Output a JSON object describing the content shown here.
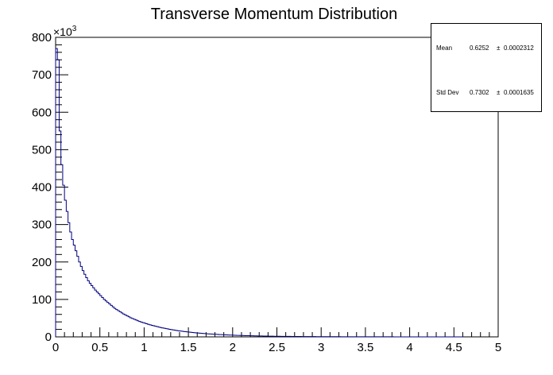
{
  "chart_data": {
    "type": "histogram",
    "title": "Transverse Momentum Distribution",
    "xlabel": "",
    "ylabel": "",
    "xlim": [
      0,
      5
    ],
    "ylim": [
      0,
      800000
    ],
    "y_multiplier_label": "×10",
    "y_multiplier_exponent": "3",
    "x_ticks": [
      "0",
      "0.5",
      "1",
      "1.5",
      "2",
      "2.5",
      "3",
      "3.5",
      "4",
      "4.5",
      "5"
    ],
    "y_ticks": [
      "0",
      "100",
      "200",
      "300",
      "400",
      "500",
      "600",
      "700",
      "800"
    ],
    "bin_width": 0.02,
    "line_color": "#00007f",
    "grid": false,
    "legend": "none",
    "stats": [
      {
        "name": "Mean",
        "value": "0.6252",
        "pm": "±",
        "error": "0.0002312"
      },
      {
        "name": "Std Dev",
        "value": "0.7302",
        "pm": "±",
        "error": "0.0001635"
      }
    ],
    "values": [
      770000,
      740000,
      550000,
      460000,
      405000,
      365000,
      335000,
      305000,
      280000,
      260000,
      245000,
      230000,
      215000,
      200000,
      188000,
      177000,
      167000,
      158000,
      150000,
      143000,
      137000,
      131000,
      125000,
      120000,
      115000,
      110000,
      105000,
      100000,
      96000,
      92000,
      88000,
      84000,
      80000,
      76000,
      73000,
      70000,
      67000,
      64000,
      61000,
      58500,
      56000,
      53500,
      51000,
      49000,
      47000,
      45000,
      43000,
      41000,
      39500,
      38000,
      36500,
      35000,
      33500,
      32000,
      30800,
      29600,
      28400,
      27200,
      26100,
      25000,
      24000,
      23000,
      22000,
      21100,
      20200,
      19400,
      18600,
      17800,
      17000,
      16300,
      15600,
      15000,
      14400,
      13800,
      13200,
      12700,
      12200,
      11700,
      11200,
      10700,
      10300,
      9900,
      9500,
      9100,
      8700,
      8300,
      8000,
      7700,
      7400,
      7100,
      6800,
      6500,
      6200,
      6000,
      5800,
      5500,
      5300,
      5100,
      4900,
      4700,
      4500,
      4300,
      4100,
      3900,
      3800,
      3600,
      3500,
      3300,
      3200,
      3100,
      2950,
      2800,
      2700,
      2600,
      2500,
      2400,
      2300,
      2200,
      2100,
      2000,
      1950,
      1850,
      1800,
      1700,
      1650,
      1600,
      1500,
      1450,
      1400,
      1350,
      1300,
      1250,
      1200,
      1150,
      1100,
      1050,
      1000,
      970,
      930,
      900,
      860,
      830,
      800,
      770,
      740,
      710,
      680,
      650,
      630,
      600,
      580,
      560,
      540,
      520,
      500,
      480,
      460,
      440,
      430,
      410,
      400,
      380,
      370,
      360,
      340,
      330,
      320,
      310,
      300,
      290,
      280,
      270,
      260,
      250,
      240,
      230,
      225,
      215,
      210,
      200,
      195,
      185,
      180,
      175,
      170,
      160,
      155,
      150,
      145,
      140,
      135,
      130,
      125,
      120,
      118,
      114,
      110,
      106,
      102,
      100,
      96,
      93,
      90,
      87,
      84,
      81,
      78,
      75,
      72,
      70,
      68,
      65,
      63,
      61,
      59,
      57,
      55,
      53,
      51,
      50,
      48,
      46,
      45,
      43,
      42,
      40,
      39,
      37,
      36,
      35
    ]
  }
}
